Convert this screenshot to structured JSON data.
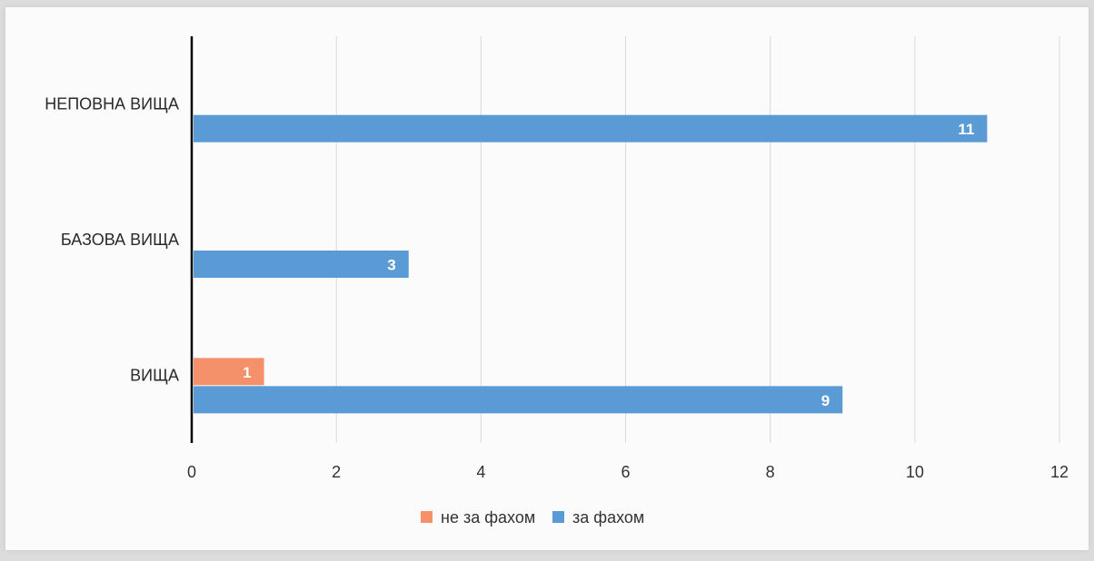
{
  "chart_data": {
    "type": "bar",
    "orientation": "horizontal",
    "categories": [
      "ВИЩА",
      "БАЗОВА ВИЩА",
      "НЕПОВНА ВИЩА"
    ],
    "series": [
      {
        "name": "не за фахом",
        "values": [
          1,
          null,
          null
        ],
        "color": "#f4916a"
      },
      {
        "name": "за фахом",
        "values": [
          9,
          3,
          11
        ],
        "color": "#5b9bd5"
      }
    ],
    "x_ticks": [
      "0",
      "2",
      "4",
      "6",
      "8",
      "10",
      "12"
    ],
    "xlim": [
      0,
      12
    ],
    "grid": true,
    "legend_position": "bottom",
    "title": "",
    "xlabel": "",
    "ylabel": ""
  }
}
